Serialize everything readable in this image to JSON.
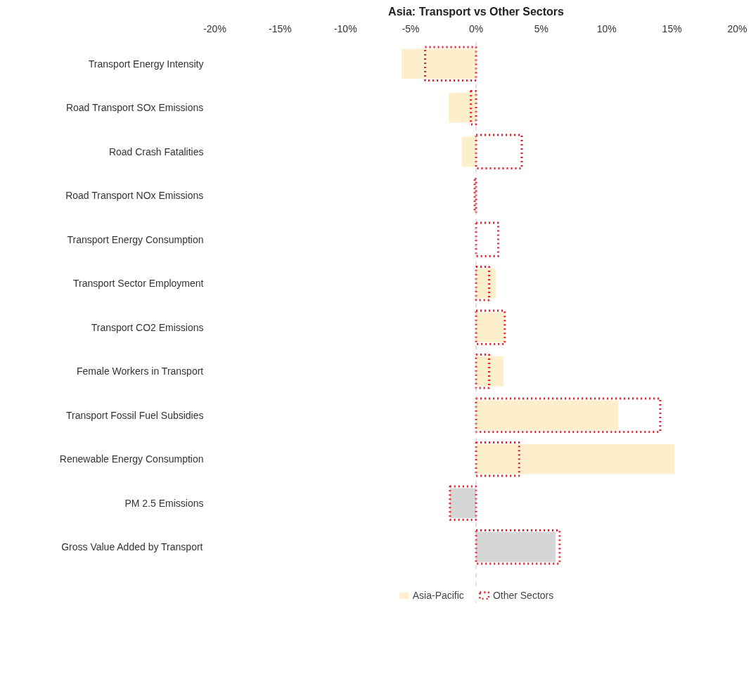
{
  "chart_data": {
    "type": "bar",
    "orientation": "horizontal",
    "title": "Asia: Transport vs Other Sectors",
    "categories": [
      "Transport Energy Intensity",
      "Road Transport SOx Emissions",
      "Road Crash Fatalities",
      "Road Transport NOx Emissions",
      "Transport Energy Consumption",
      "Transport Sector Employment",
      "Transport CO2 Emissions",
      "Female Workers in Transport",
      "Transport Fossil Fuel Subsidies",
      "Renewable Energy Consumption",
      "PM 2.5 Emissions",
      "Gross Value Added by Transport"
    ],
    "series": [
      {
        "name": "Asia-Pacific",
        "color": "#fdeecc",
        "colors": [
          "#fdeecc",
          "#fdeecc",
          "#fdeecc",
          "#fdeecc",
          "#fdeecc",
          "#fdeecc",
          "#fdeecc",
          "#fdeecc",
          "#fdeecc",
          "#fdeecc",
          "#d6d6d6",
          "#d6d6d6"
        ],
        "values": [
          -5.7,
          -2.1,
          -1.1,
          0,
          0,
          1.5,
          2.2,
          2.1,
          10.9,
          15.2,
          -2.0,
          6.1
        ]
      },
      {
        "name": "Other Sectors",
        "color": "#e3202a",
        "line_style": "dotted",
        "values": [
          -3.9,
          -0.4,
          3.5,
          -0.1,
          1.7,
          1.0,
          2.2,
          1.0,
          14.1,
          3.3,
          -2.0,
          6.4
        ]
      }
    ],
    "xlim": [
      -20,
      20
    ],
    "xticks": [
      {
        "value": -20,
        "label": "-20%"
      },
      {
        "value": -15,
        "label": "-15%"
      },
      {
        "value": -10,
        "label": "-10%"
      },
      {
        "value": -5,
        "label": "-5%"
      },
      {
        "value": 0,
        "label": "0%"
      },
      {
        "value": 5,
        "label": "5%"
      },
      {
        "value": 10,
        "label": "10%"
      },
      {
        "value": 15,
        "label": "15%"
      },
      {
        "value": 20,
        "label": "20%"
      }
    ],
    "ref_lines": [
      {
        "axis": "x",
        "value": 0,
        "color": "#bfbfbf",
        "line_style": "dashed"
      }
    ],
    "grid": false,
    "legend": "bottom"
  }
}
